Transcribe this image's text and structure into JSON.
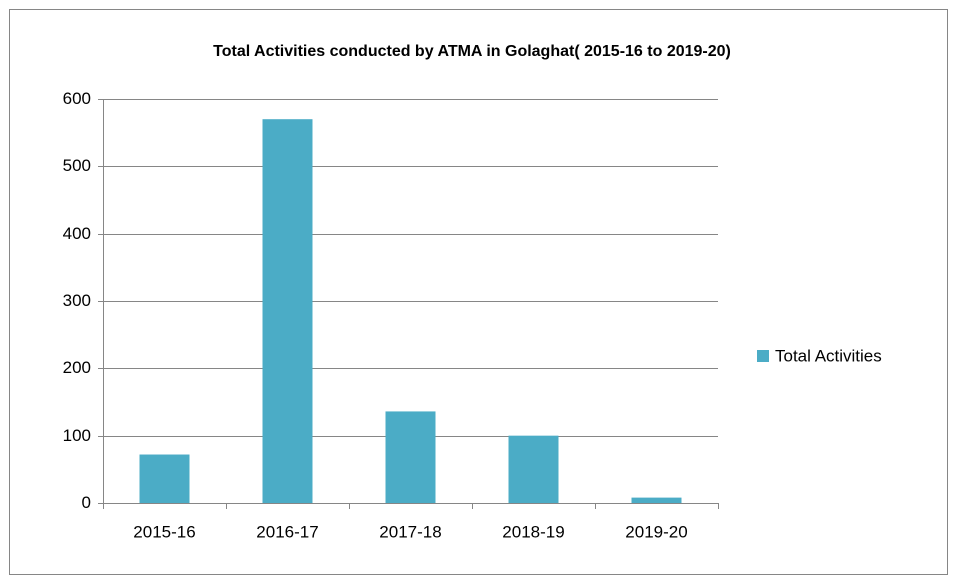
{
  "chart_data": {
    "type": "bar",
    "title": "Total Activities conducted by ATMA in Golaghat( 2015-16 to 2019-20)",
    "categories": [
      "2015-16",
      "2016-17",
      "2017-18",
      "2018-19",
      "2019-20"
    ],
    "series": [
      {
        "name": "Total Activities",
        "color": "#4bacc6",
        "values": [
          72,
          570,
          136,
          100,
          8
        ]
      }
    ],
    "ylim": [
      0,
      600
    ],
    "yticks": [
      0,
      100,
      200,
      300,
      400,
      500,
      600
    ],
    "grid": true,
    "legend": "right"
  }
}
